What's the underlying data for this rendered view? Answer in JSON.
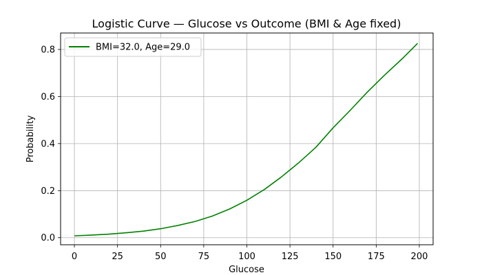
{
  "chart_data": {
    "type": "line",
    "title": "Logistic Curve — Glucose vs Outcome (BMI & Age fixed)",
    "xlabel": "Glucose",
    "ylabel": "Probability",
    "xlim": [
      -8,
      208
    ],
    "ylim": [
      -0.03,
      0.87
    ],
    "xticks": [
      0,
      25,
      50,
      75,
      100,
      125,
      150,
      175,
      200
    ],
    "yticks": [
      0.0,
      0.2,
      0.4,
      0.6,
      0.8
    ],
    "ytick_labels": [
      "0.0",
      "0.2",
      "0.4",
      "0.6",
      "0.8"
    ],
    "grid": true,
    "legend_position": "top-left",
    "series": [
      {
        "name": "BMI=32.0, Age=29.0",
        "color": "#008000",
        "x": [
          0,
          10,
          20,
          30,
          40,
          50,
          60,
          70,
          80,
          90,
          100,
          110,
          120,
          130,
          140,
          150,
          160,
          170,
          180,
          190,
          199
        ],
        "y": [
          0.008,
          0.011,
          0.015,
          0.021,
          0.028,
          0.038,
          0.052,
          0.069,
          0.092,
          0.122,
          0.159,
          0.204,
          0.258,
          0.318,
          0.384,
          0.467,
          0.542,
          0.62,
          0.692,
          0.76,
          0.826
        ]
      }
    ]
  }
}
